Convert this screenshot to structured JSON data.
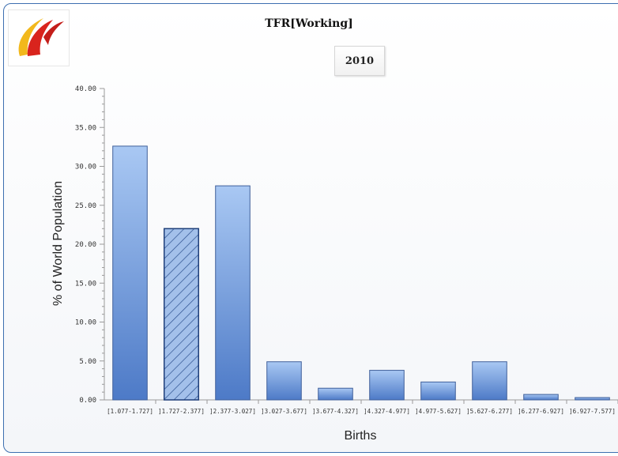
{
  "chart_data": {
    "type": "bar",
    "title": "TFR[Working]",
    "subtitle": "2010",
    "xlabel": "Births",
    "ylabel": "% of World Population",
    "ylim": [
      0,
      40
    ],
    "yticks": [
      "0.00",
      "5.00",
      "10.00",
      "15.00",
      "20.00",
      "25.00",
      "30.00",
      "35.00",
      "40.00"
    ],
    "categories": [
      "[1.077-1.727]",
      "]1.727-2.377]",
      "]2.377-3.027]",
      "]3.027-3.677]",
      "]3.677-4.327]",
      "]4.327-4.977]",
      "]4.977-5.627]",
      "]5.627-6.277]",
      "]6.277-6.927]",
      "]6.927-7.577]"
    ],
    "values": [
      32.6,
      22.0,
      27.5,
      4.9,
      1.5,
      3.8,
      2.3,
      4.9,
      0.7,
      0.3
    ],
    "highlighted_index": 1,
    "grid": false,
    "colors": {
      "bar_top": "#a9c8f3",
      "bar_bottom": "#4d7ac7",
      "bar_stroke": "#3f5f9a",
      "hatch": "#2b4f8e"
    }
  }
}
